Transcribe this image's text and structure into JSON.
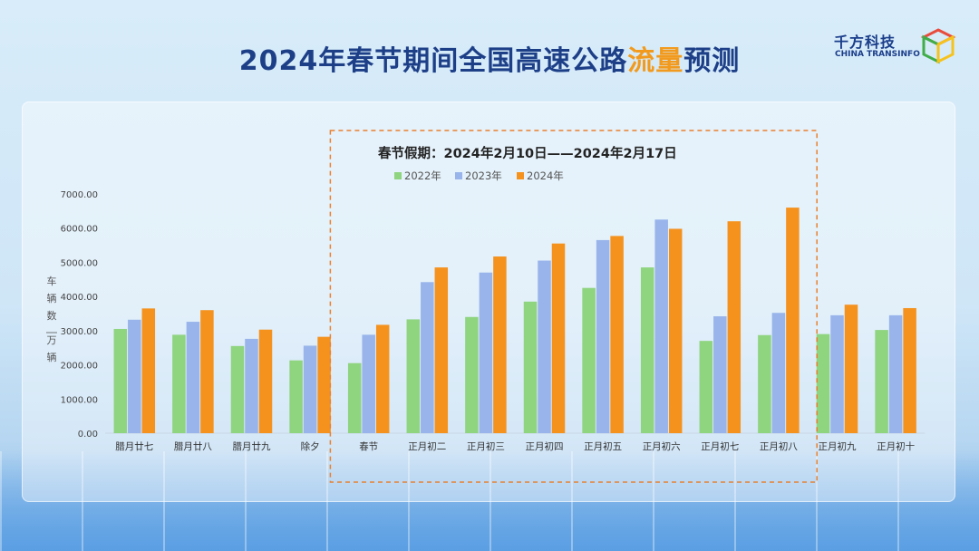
{
  "header": {
    "title_main": "2024年春节期间全国高速公路",
    "title_highlight": "流量",
    "title_tail": "预测"
  },
  "logo": {
    "name_cn": "千方科技",
    "name_en": "CHINA TRANSINFO"
  },
  "colors": {
    "title": "#1d3f88",
    "highlight": "#f29a1d",
    "series_2022": "#8fd47f",
    "series_2023": "#98b4ea",
    "series_2024": "#f5921e",
    "box": "#e8802e"
  },
  "chart_data": {
    "type": "bar",
    "ylabel": "车辆数 万辆",
    "ylim": [
      0,
      7000
    ],
    "yticks": [
      "0.00",
      "1000.00",
      "2000.00",
      "3000.00",
      "4000.00",
      "5000.00",
      "6000.00",
      "7000.00"
    ],
    "categories": [
      "腊月廿七",
      "腊月廿八",
      "腊月廿九",
      "除夕",
      "春节",
      "正月初二",
      "正月初三",
      "正月初四",
      "正月初五",
      "正月初六",
      "正月初七",
      "正月初八",
      "正月初九",
      "正月初十"
    ],
    "series": [
      {
        "name": "2022年",
        "values": [
          3050,
          2880,
          2550,
          2130,
          2050,
          3330,
          3400,
          3850,
          4250,
          4850,
          2700,
          2870,
          2900,
          3020
        ]
      },
      {
        "name": "2023年",
        "values": [
          3320,
          3260,
          2760,
          2560,
          2880,
          4420,
          4700,
          5050,
          5650,
          6250,
          3420,
          3520,
          3450,
          3450
        ]
      },
      {
        "name": "2024年",
        "values": [
          3650,
          3600,
          3030,
          2820,
          3170,
          4850,
          5170,
          5550,
          5770,
          5980,
          6200,
          6600,
          3760,
          3660
        ]
      }
    ],
    "annotation": {
      "label": "春节假期：2024年2月10日——2024年2月17日",
      "range_start": "春节",
      "range_end": "正月初八"
    }
  }
}
